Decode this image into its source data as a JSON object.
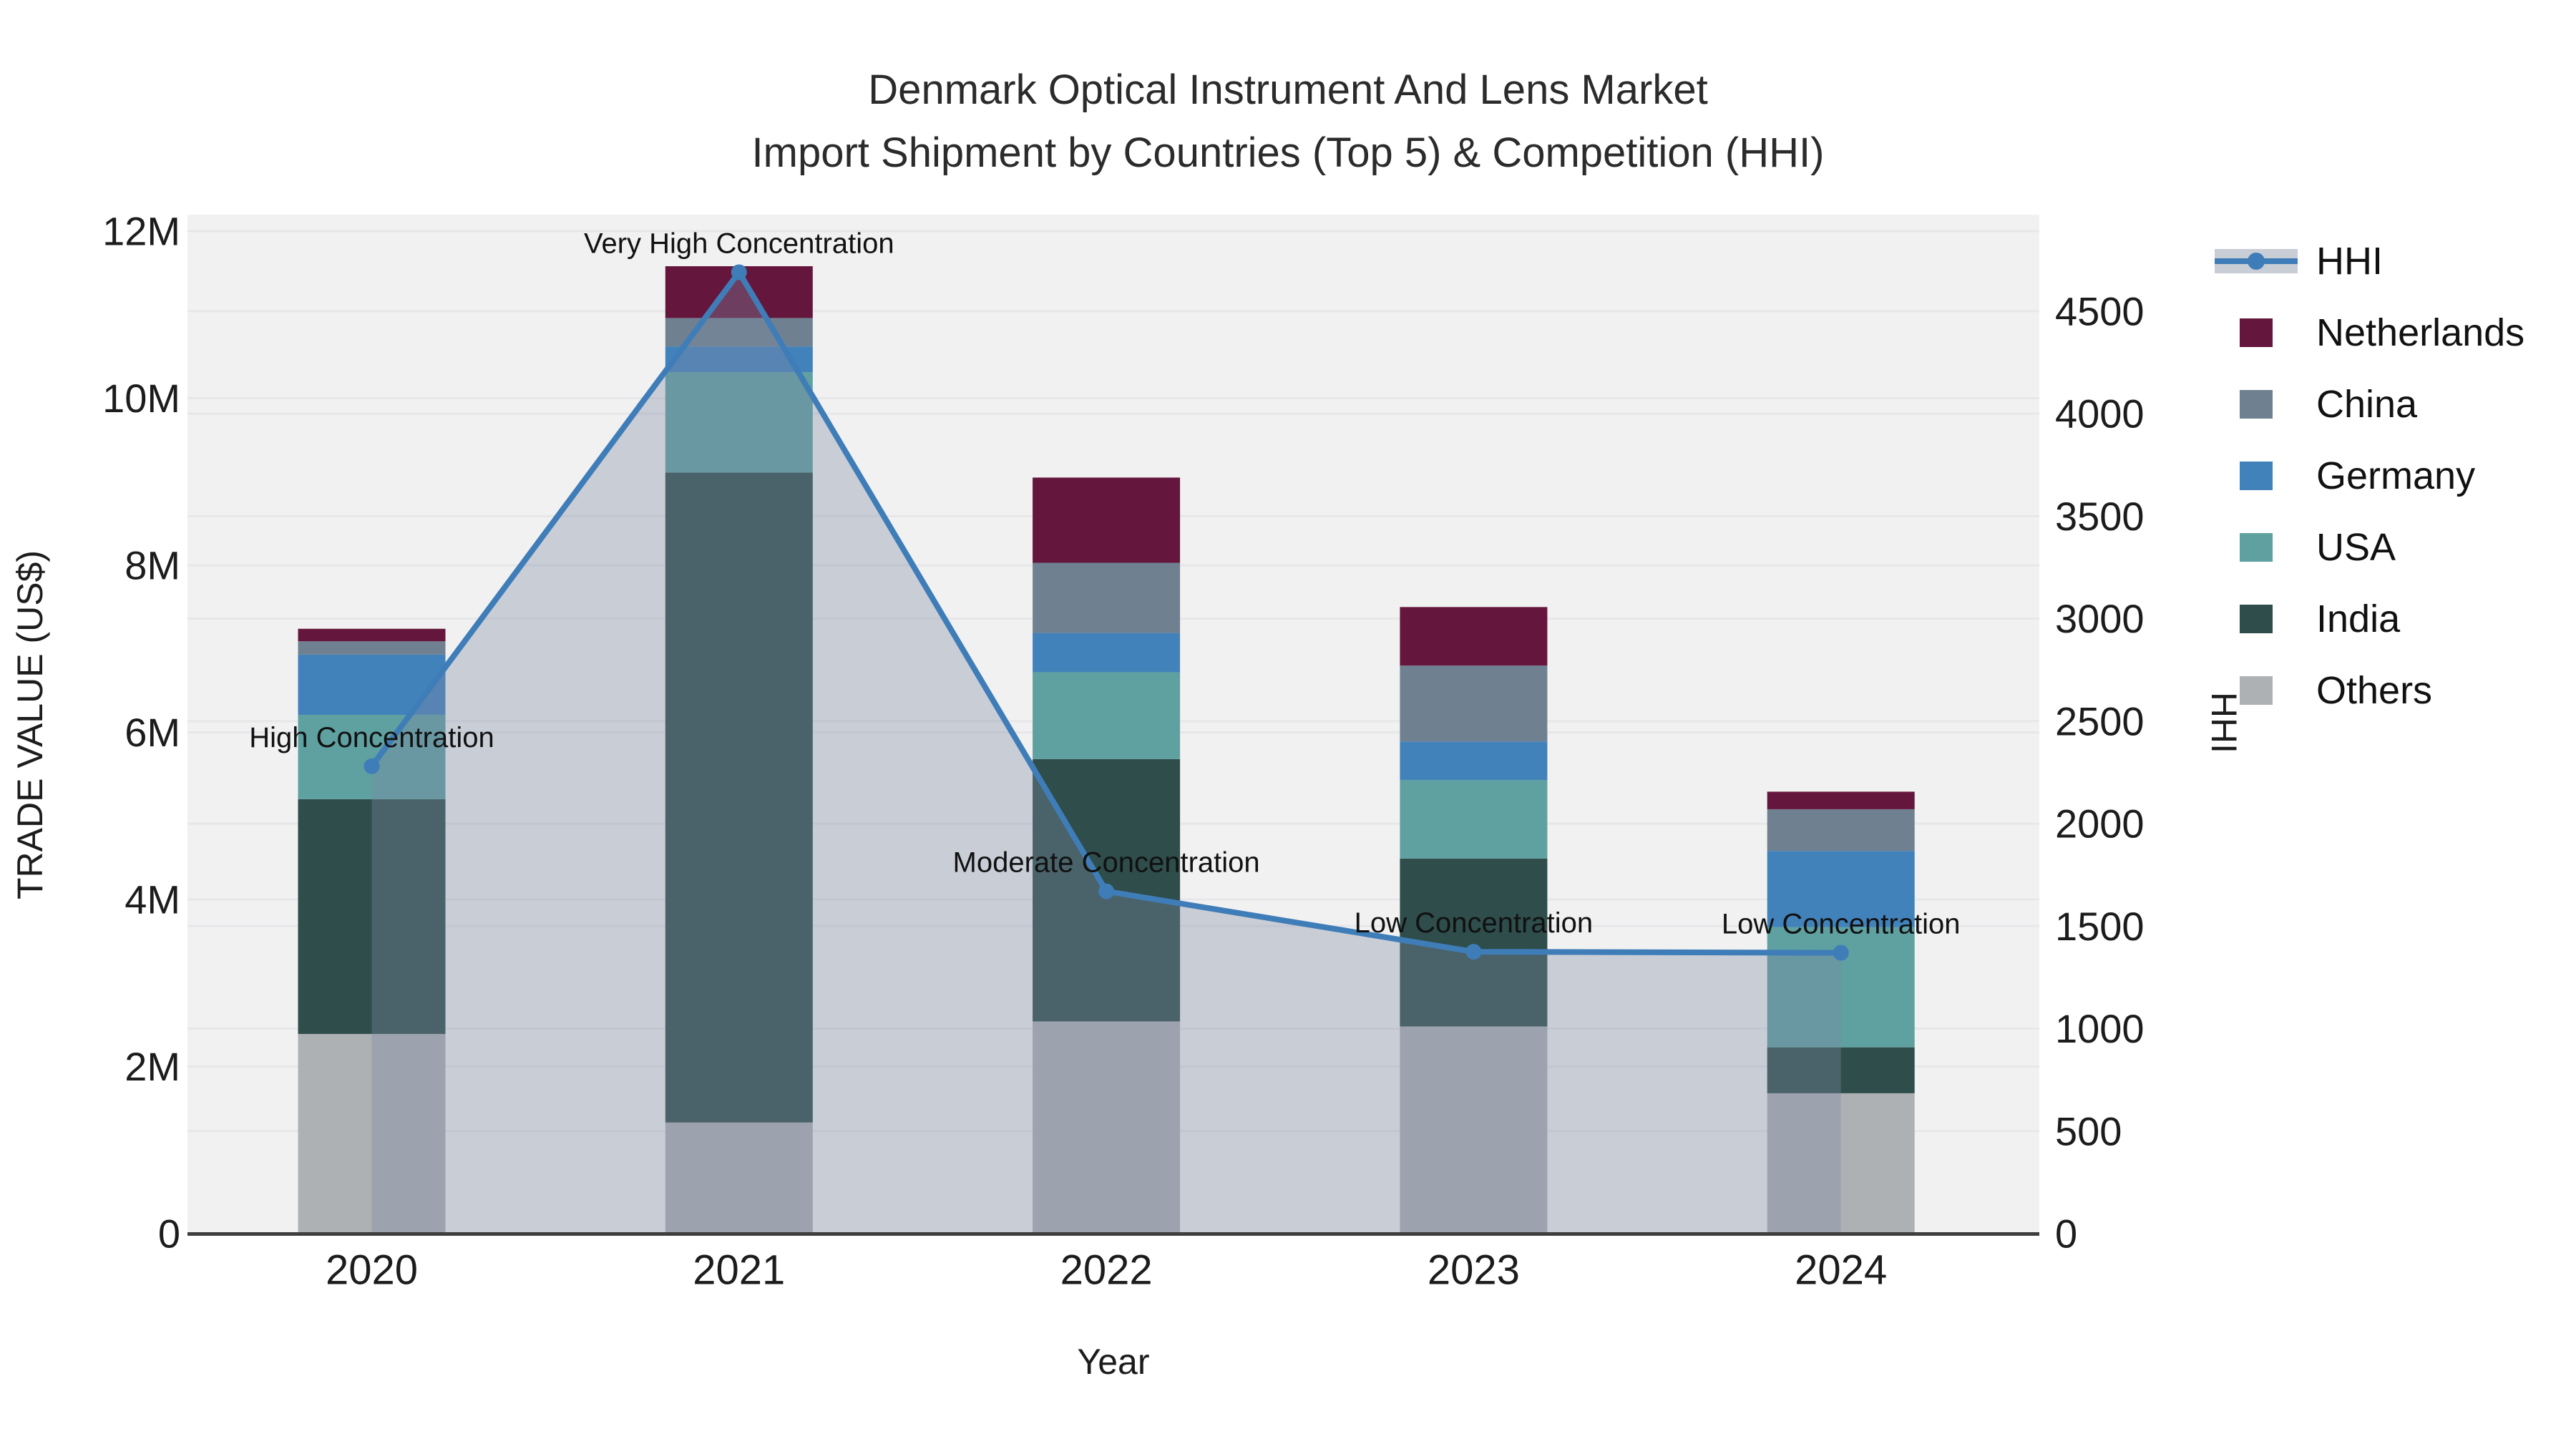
{
  "title": {
    "line1": "Denmark Optical Instrument And Lens Market",
    "line2": "Import Shipment by Countries (Top 5) & Competition (HHI)"
  },
  "axes": {
    "x": {
      "title": "Year",
      "ticks": [
        "2020",
        "2021",
        "2022",
        "2023",
        "2024"
      ]
    },
    "y_left": {
      "title": "TRADE VALUE (US$)",
      "ticks": [
        "0",
        "2M",
        "4M",
        "6M",
        "8M",
        "10M",
        "12M"
      ],
      "tick_values_millions": [
        0,
        2,
        4,
        6,
        8,
        10,
        12
      ]
    },
    "y_right": {
      "title": "HHI",
      "ticks": [
        "0",
        "500",
        "1000",
        "1500",
        "2000",
        "2500",
        "3000",
        "3500",
        "4000",
        "4500"
      ],
      "tick_values": [
        0,
        500,
        1000,
        1500,
        2000,
        2500,
        3000,
        3500,
        4000,
        4500
      ]
    }
  },
  "legend": {
    "items": [
      {
        "label": "HHI",
        "type": "line",
        "color": "#3f7db8"
      },
      {
        "label": "Netherlands",
        "type": "swatch",
        "color": "#64163c"
      },
      {
        "label": "China",
        "type": "swatch",
        "color": "#6f8191"
      },
      {
        "label": "Germany",
        "type": "swatch",
        "color": "#4282bb"
      },
      {
        "label": "USA",
        "type": "swatch",
        "color": "#5fa0a1"
      },
      {
        "label": "India",
        "type": "swatch",
        "color": "#2e4d4b"
      },
      {
        "label": "Others",
        "type": "swatch",
        "color": "#aeb1b4"
      }
    ]
  },
  "annotations": [
    {
      "year": "2020",
      "label": "High Concentration"
    },
    {
      "year": "2021",
      "label": "Very High Concentration"
    },
    {
      "year": "2022",
      "label": "Moderate Concentration"
    },
    {
      "year": "2023",
      "label": "Low Concentration"
    },
    {
      "year": "2024",
      "label": "Low Concentration"
    }
  ],
  "colors": {
    "plot_bg": "#f1f1f2",
    "grid": "#e7e7e9",
    "axis_line": "#3e3e3e",
    "hhi_line": "#3f7db8",
    "hhi_fill": "rgba(125,138,163,0.35)",
    "legend_band": "#c9cdd6",
    "series": {
      "Netherlands": "#64163c",
      "China": "#6f8191",
      "Germany": "#4282bb",
      "USA": "#5fa0a1",
      "India": "#2e4d4b",
      "Others": "#aeb1b4"
    }
  },
  "chart_data": {
    "type": "bar",
    "subtype": "stacked bars (trade value, left axis) + HHI line (right axis)",
    "title": "Denmark Optical Instrument And Lens Market — Import Shipment by Countries (Top 5) & Competition (HHI)",
    "xlabel": "Year",
    "ylabel_left": "TRADE VALUE (US$)",
    "ylabel_right": "HHI",
    "categories": [
      "2020",
      "2021",
      "2022",
      "2023",
      "2024"
    ],
    "values_unit": "millions USD (estimated from axis)",
    "stack_order_bottom_to_top": [
      "Others",
      "India",
      "USA",
      "Germany",
      "China",
      "Netherlands"
    ],
    "series": [
      {
        "name": "Netherlands",
        "values": [
          0.15,
          0.62,
          1.02,
          0.7,
          0.21
        ]
      },
      {
        "name": "China",
        "values": [
          0.16,
          0.34,
          0.84,
          0.91,
          0.5
        ]
      },
      {
        "name": "Germany",
        "values": [
          0.72,
          0.31,
          0.47,
          0.46,
          0.91
        ]
      },
      {
        "name": "USA",
        "values": [
          1.01,
          1.2,
          1.04,
          0.94,
          1.44
        ]
      },
      {
        "name": "India",
        "values": [
          2.81,
          7.78,
          3.14,
          2.01,
          0.55
        ]
      },
      {
        "name": "Others",
        "values": [
          2.39,
          1.33,
          2.54,
          2.48,
          1.68
        ]
      }
    ],
    "bar_totals_millions": [
      7.24,
      11.58,
      9.05,
      7.5,
      5.29
    ],
    "hhi": {
      "name": "HHI",
      "axis": "right",
      "values": [
        2280,
        4690,
        1670,
        1375,
        1370
      ]
    },
    "ylim_left_millions": [
      0,
      12.2
    ],
    "ylim_right": [
      0,
      4970
    ],
    "grid": true,
    "legend_position": "right"
  }
}
